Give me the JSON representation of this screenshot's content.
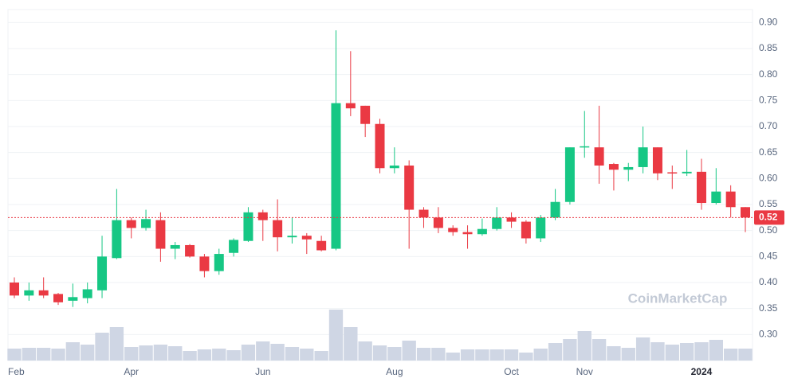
{
  "chart_data": {
    "type": "candlestick",
    "watermark": "CoinMarketCap",
    "categories": [
      "Feb",
      null,
      null,
      null,
      null,
      null,
      null,
      null,
      "Apr",
      null,
      null,
      null,
      null,
      null,
      null,
      null,
      null,
      "Jun",
      null,
      null,
      null,
      null,
      null,
      null,
      null,
      null,
      "Aug",
      null,
      null,
      null,
      null,
      null,
      null,
      null,
      "Oct",
      null,
      null,
      null,
      null,
      "Nov",
      null,
      null,
      null,
      null,
      null,
      null,
      null,
      "2024",
      null,
      null,
      null
    ],
    "open": [
      0.4,
      0.375,
      0.385,
      0.378,
      0.365,
      0.37,
      0.385,
      0.447,
      0.52,
      0.505,
      0.52,
      0.465,
      0.472,
      0.45,
      0.422,
      0.457,
      0.48,
      0.535,
      0.52,
      0.487,
      0.49,
      0.48,
      0.465,
      0.745,
      0.74,
      0.705,
      0.62,
      0.625,
      0.54,
      0.525,
      0.505,
      0.497,
      0.493,
      0.503,
      0.525,
      0.517,
      0.485,
      0.525,
      0.555,
      0.66,
      0.66,
      0.628,
      0.617,
      0.622,
      0.66,
      0.612,
      0.61,
      0.613,
      0.553,
      0.575,
      0.545
    ],
    "high": [
      0.41,
      0.4,
      0.41,
      0.38,
      0.398,
      0.4,
      0.49,
      0.58,
      0.525,
      0.54,
      0.535,
      0.478,
      0.474,
      0.455,
      0.465,
      0.485,
      0.545,
      0.54,
      0.56,
      0.525,
      0.495,
      0.49,
      0.885,
      0.845,
      0.74,
      0.715,
      0.66,
      0.635,
      0.545,
      0.545,
      0.51,
      0.51,
      0.523,
      0.545,
      0.535,
      0.52,
      0.53,
      0.58,
      0.66,
      0.73,
      0.74,
      0.63,
      0.63,
      0.7,
      0.66,
      0.625,
      0.655,
      0.638,
      0.62,
      0.587,
      0.545
    ],
    "low": [
      0.37,
      0.365,
      0.37,
      0.357,
      0.353,
      0.36,
      0.37,
      0.445,
      0.485,
      0.5,
      0.44,
      0.445,
      0.448,
      0.41,
      0.415,
      0.45,
      0.478,
      0.48,
      0.46,
      0.475,
      0.455,
      0.46,
      0.462,
      0.72,
      0.68,
      0.61,
      0.61,
      0.465,
      0.505,
      0.495,
      0.49,
      0.465,
      0.49,
      0.5,
      0.505,
      0.475,
      0.478,
      0.52,
      0.55,
      0.64,
      0.59,
      0.577,
      0.595,
      0.61,
      0.597,
      0.58,
      0.605,
      0.54,
      0.55,
      0.525,
      0.497
    ],
    "close": [
      0.375,
      0.385,
      0.375,
      0.362,
      0.372,
      0.387,
      0.45,
      0.52,
      0.505,
      0.522,
      0.465,
      0.472,
      0.45,
      0.422,
      0.455,
      0.482,
      0.535,
      0.52,
      0.487,
      0.49,
      0.483,
      0.462,
      0.745,
      0.735,
      0.705,
      0.62,
      0.625,
      0.54,
      0.525,
      0.505,
      0.497,
      0.493,
      0.503,
      0.525,
      0.517,
      0.485,
      0.525,
      0.555,
      0.66,
      0.662,
      0.625,
      0.617,
      0.622,
      0.66,
      0.61,
      0.61,
      0.613,
      0.553,
      0.575,
      0.545,
      0.525
    ],
    "volume": [
      15,
      16,
      16,
      15,
      23,
      20,
      35,
      42,
      17,
      19,
      20,
      18,
      12,
      14,
      15,
      13,
      20,
      24,
      21,
      17,
      15,
      12,
      64,
      42,
      24,
      19,
      17,
      25,
      16,
      16,
      10,
      14,
      14,
      14,
      14,
      10,
      15,
      22,
      27,
      37,
      27,
      18,
      16,
      29,
      23,
      20,
      22,
      23,
      26,
      15,
      15
    ],
    "up_color": "#16c784",
    "down_color": "#ea3943",
    "current_price": {
      "value": 0.525,
      "label": "0.52"
    },
    "ylim": [
      0.25,
      0.925
    ],
    "yticks": [
      {
        "value": 0.3,
        "label": "0.30"
      },
      0.35,
      {
        "value": 0.4,
        "label": "0.40"
      },
      0.45,
      {
        "value": 0.5,
        "label": "0.50"
      },
      0.55,
      {
        "value": 0.6,
        "label": "0.60"
      },
      0.65,
      {
        "value": 0.7,
        "label": "0.70"
      },
      0.75,
      {
        "value": 0.8,
        "label": "0.80"
      },
      0.85,
      {
        "value": 0.9,
        "label": "0.90"
      }
    ],
    "grid": true
  }
}
